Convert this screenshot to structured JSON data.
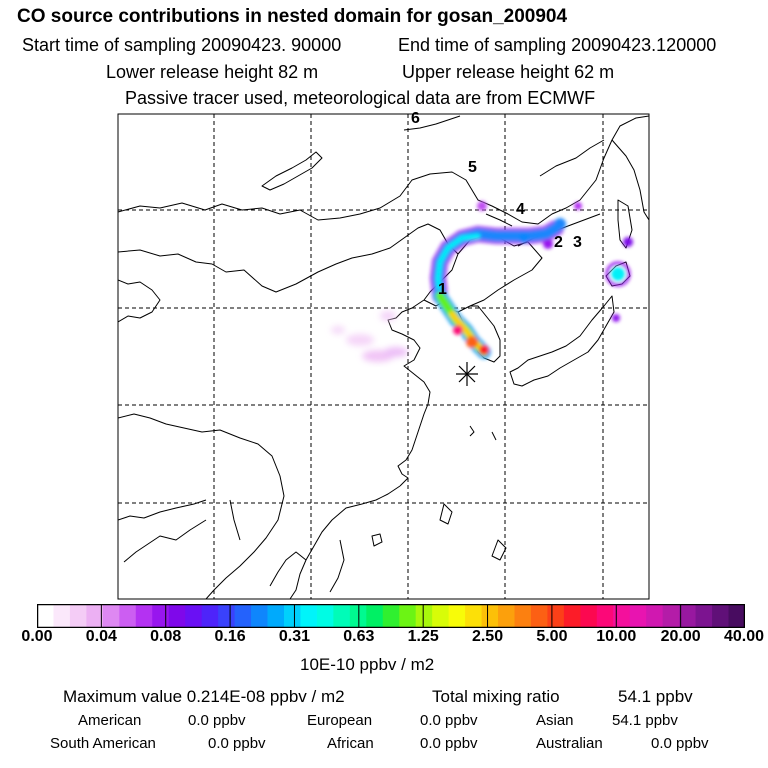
{
  "header": {
    "title": "CO  source contributions in nested domain for gosan_200904",
    "start_label": "Start time of sampling 20090423. 90000",
    "end_label": "End time of sampling 20090423.120000",
    "lower_label": "Lower release height   82 m",
    "upper_label": "Upper release height   62 m",
    "tracer_note": "Passive tracer used, meteorological data are from ECMWF"
  },
  "map": {
    "trajectory_labels": [
      "1",
      "2",
      "3",
      "4",
      "5",
      "6"
    ],
    "receptor_marker": "asterisk",
    "receptor_name": "gosan"
  },
  "colorbar": {
    "tick_labels": [
      "0.00",
      "0.04",
      "0.08",
      "0.16",
      "0.31",
      "0.63",
      "1.25",
      "2.50",
      "5.00",
      "10.00",
      "20.00",
      "40.00"
    ],
    "unit_label": "10E-10 ppbv / m2",
    "colors": [
      "#ffffff",
      "#fbe8fb",
      "#f4ccf6",
      "#ecb0f3",
      "#de88f2",
      "#cc5ef2",
      "#b432f2",
      "#9816ee",
      "#7f08ea",
      "#6a10f4",
      "#4e24fa",
      "#3a42fc",
      "#2462fc",
      "#0f86fc",
      "#00aafc",
      "#00d0fc",
      "#00f4fa",
      "#00fce4",
      "#00fcb8",
      "#00fa90",
      "#00f064",
      "#30f030",
      "#6cf414",
      "#a8f80c",
      "#d8fc08",
      "#f8fc08",
      "#fce008",
      "#fcc008",
      "#fca00c",
      "#fc8010",
      "#fc6014",
      "#fc4018",
      "#fc1c28",
      "#fc0850",
      "#fc0878",
      "#f4109c",
      "#e814b0",
      "#d018b0",
      "#b41ca8",
      "#9818a0",
      "#7c1490",
      "#601078",
      "#480c60"
    ]
  },
  "footer": {
    "max_label": "Maximum value  0.214E-08 ppbv / m2",
    "total_label": "Total mixing ratio",
    "total_value": "54.1 ppbv",
    "regions": [
      {
        "name": "American",
        "value": "0.0 ppbv"
      },
      {
        "name": "European",
        "value": "0.0 ppbv"
      },
      {
        "name": "Asian",
        "value": "54.1 ppbv"
      },
      {
        "name": "South American",
        "value": "0.0 ppbv"
      },
      {
        "name": "African",
        "value": "0.0 ppbv"
      },
      {
        "name": "Australian",
        "value": "0.0 ppbv"
      }
    ]
  },
  "chart_data": {
    "type": "heatmap",
    "title": "CO  source contributions in nested domain for gosan_200904",
    "colorbar_ticks": [
      0.0,
      0.04,
      0.08,
      0.16,
      0.31,
      0.63,
      1.25,
      2.5,
      5.0,
      10.0,
      20.0,
      40.0
    ],
    "unit": "10E-10 ppbv / m2",
    "max_value": "0.214E-08 ppbv / m2",
    "total_mixing_ratio_ppbv": 54.1,
    "grid": true,
    "legend": "bottom"
  }
}
